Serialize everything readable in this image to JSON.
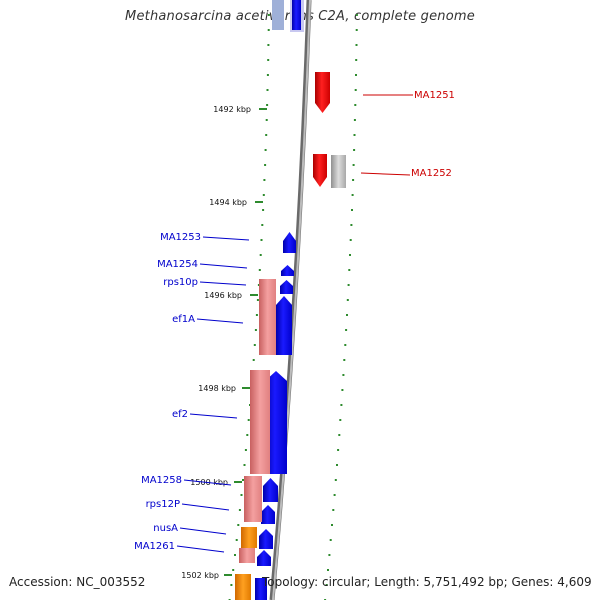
{
  "title": "Methanosarcina acetivorans C2A, complete genome",
  "footer": {
    "accession": "Accession: NC_003552",
    "summary": "Topology: circular; Length: 5,751,492 bp; Genes: 4,609"
  },
  "colors": {
    "forward_gene": "#0000ee",
    "reverse_gene": "#ee0000",
    "label_forward": "#0000cc",
    "label_reverse": "#cc0000",
    "rna": "#f08080",
    "orange": "#ff8c00",
    "gray_feature": "#b8b8b8",
    "dots": "#2e8b2e",
    "backbone": "#888888"
  },
  "scale_ticks": [
    {
      "label": "1492 kbp"
    },
    {
      "label": "1494 kbp"
    },
    {
      "label": "1496 kbp"
    },
    {
      "label": "1498 kbp"
    },
    {
      "label": "1500 kbp"
    },
    {
      "label": "1502 kbp"
    }
  ],
  "genes_left": [
    {
      "label": "MA1253"
    },
    {
      "label": "MA1254"
    },
    {
      "label": "rps10p"
    },
    {
      "label": "ef1A"
    },
    {
      "label": "ef2"
    },
    {
      "label": "MA1258"
    },
    {
      "label": "rps12P"
    },
    {
      "label": "nusA"
    },
    {
      "label": "MA1261"
    }
  ],
  "genes_right": [
    {
      "label": "MA1251"
    },
    {
      "label": "MA1252"
    }
  ]
}
